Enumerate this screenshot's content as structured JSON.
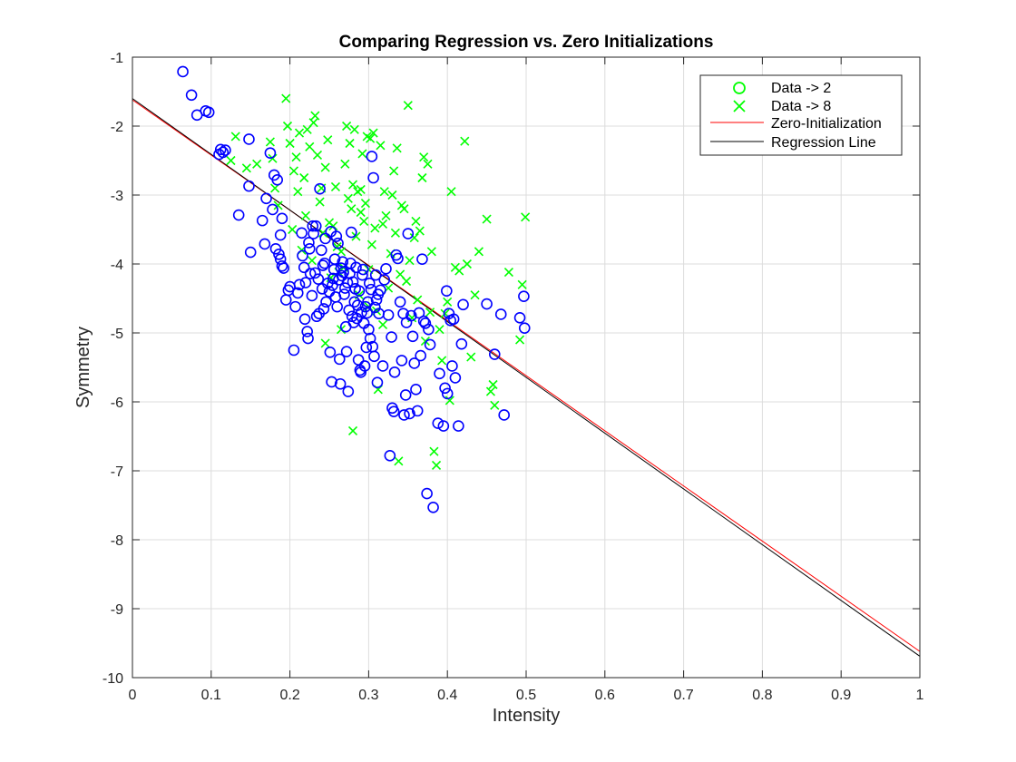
{
  "chart_data": {
    "type": "scatter",
    "title": "Comparing Regression vs. Zero Initializations",
    "xlabel": "Intensity",
    "ylabel": "Symmetry",
    "xlim": [
      0,
      1
    ],
    "ylim": [
      -10,
      -1
    ],
    "xticks": [
      "0",
      "0.1",
      "0.2",
      "0.3",
      "0.4",
      "0.5",
      "0.6",
      "0.7",
      "0.8",
      "0.9",
      "1"
    ],
    "yticks": [
      "-1",
      "-2",
      "-3",
      "-4",
      "-5",
      "-6",
      "-7",
      "-8",
      "-9",
      "-10"
    ],
    "grid": true,
    "legend_position": "top-right",
    "colors": {
      "data2": "#0000ff",
      "data8": "#00ff00",
      "zero_init": "#ff0000",
      "regression": "#000000",
      "grid": "#dcdcdc",
      "axis": "#262626"
    },
    "series": [
      {
        "name": "Data -> 2",
        "marker": "circle",
        "points": [
          [
            0.064,
            -1.21
          ],
          [
            0.075,
            -1.55
          ],
          [
            0.082,
            -1.84
          ],
          [
            0.093,
            -1.78
          ],
          [
            0.097,
            -1.8
          ],
          [
            0.11,
            -2.41
          ],
          [
            0.112,
            -2.34
          ],
          [
            0.118,
            -2.35
          ],
          [
            0.115,
            -2.38
          ],
          [
            0.135,
            -3.29
          ],
          [
            0.148,
            -2.87
          ],
          [
            0.15,
            -3.83
          ],
          [
            0.148,
            -2.19
          ],
          [
            0.165,
            -3.37
          ],
          [
            0.168,
            -3.71
          ],
          [
            0.17,
            -3.05
          ],
          [
            0.175,
            -2.39
          ],
          [
            0.178,
            -3.21
          ],
          [
            0.18,
            -2.71
          ],
          [
            0.182,
            -3.78
          ],
          [
            0.184,
            -2.78
          ],
          [
            0.186,
            -3.86
          ],
          [
            0.188,
            -3.93
          ],
          [
            0.19,
            -3.34
          ],
          [
            0.188,
            -3.58
          ],
          [
            0.192,
            -4.06
          ],
          [
            0.19,
            -4.03
          ],
          [
            0.195,
            -4.52
          ],
          [
            0.198,
            -4.38
          ],
          [
            0.2,
            -4.33
          ],
          [
            0.205,
            -5.25
          ],
          [
            0.207,
            -4.62
          ],
          [
            0.21,
            -4.42
          ],
          [
            0.212,
            -4.3
          ],
          [
            0.215,
            -3.55
          ],
          [
            0.216,
            -3.88
          ],
          [
            0.218,
            -4.05
          ],
          [
            0.219,
            -4.8
          ],
          [
            0.22,
            -4.27
          ],
          [
            0.222,
            -4.98
          ],
          [
            0.223,
            -5.08
          ],
          [
            0.224,
            -3.69
          ],
          [
            0.225,
            -3.78
          ],
          [
            0.226,
            -4.14
          ],
          [
            0.228,
            -4.46
          ],
          [
            0.229,
            -3.45
          ],
          [
            0.23,
            -3.56
          ],
          [
            0.232,
            -4.13
          ],
          [
            0.233,
            -3.45
          ],
          [
            0.234,
            -4.76
          ],
          [
            0.236,
            -4.22
          ],
          [
            0.237,
            -4.72
          ],
          [
            0.238,
            -2.91
          ],
          [
            0.24,
            -3.8
          ],
          [
            0.241,
            -4.36
          ],
          [
            0.242,
            -4.02
          ],
          [
            0.243,
            -4.65
          ],
          [
            0.244,
            -3.99
          ],
          [
            0.245,
            -3.63
          ],
          [
            0.246,
            -4.55
          ],
          [
            0.248,
            -4.28
          ],
          [
            0.25,
            -4.4
          ],
          [
            0.251,
            -5.28
          ],
          [
            0.252,
            -3.53
          ],
          [
            0.253,
            -5.71
          ],
          [
            0.254,
            -4.31
          ],
          [
            0.255,
            -4.21
          ],
          [
            0.256,
            -4.08
          ],
          [
            0.257,
            -3.93
          ],
          [
            0.258,
            -4.48
          ],
          [
            0.259,
            -3.6
          ],
          [
            0.26,
            -4.62
          ],
          [
            0.261,
            -3.7
          ],
          [
            0.262,
            -4.23
          ],
          [
            0.263,
            -5.38
          ],
          [
            0.264,
            -5.74
          ],
          [
            0.265,
            -4.06
          ],
          [
            0.266,
            -4.17
          ],
          [
            0.267,
            -3.97
          ],
          [
            0.268,
            -4.12
          ],
          [
            0.269,
            -4.44
          ],
          [
            0.27,
            -4.35
          ],
          [
            0.271,
            -4.91
          ],
          [
            0.272,
            -5.27
          ],
          [
            0.273,
            -4.27
          ],
          [
            0.274,
            -5.85
          ],
          [
            0.275,
            -4.67
          ],
          [
            0.276,
            -4.14
          ],
          [
            0.277,
            -3.99
          ],
          [
            0.278,
            -3.54
          ],
          [
            0.279,
            -4.76
          ],
          [
            0.28,
            -4.26
          ],
          [
            0.281,
            -4.85
          ],
          [
            0.282,
            -4.55
          ],
          [
            0.283,
            -4.36
          ],
          [
            0.284,
            -4.05
          ],
          [
            0.285,
            -4.79
          ],
          [
            0.286,
            -4.6
          ],
          [
            0.287,
            -5.39
          ],
          [
            0.288,
            -4.39
          ],
          [
            0.289,
            -5.54
          ],
          [
            0.29,
            -5.57
          ],
          [
            0.291,
            -4.7
          ],
          [
            0.292,
            -4.16
          ],
          [
            0.293,
            -4.08
          ],
          [
            0.294,
            -4.86
          ],
          [
            0.295,
            -5.48
          ],
          [
            0.296,
            -4.62
          ],
          [
            0.297,
            -5.21
          ],
          [
            0.298,
            -4.71
          ],
          [
            0.299,
            -4.55
          ],
          [
            0.3,
            -4.95
          ],
          [
            0.301,
            -4.28
          ],
          [
            0.302,
            -5.08
          ],
          [
            0.303,
            -4.37
          ],
          [
            0.304,
            -2.44
          ],
          [
            0.305,
            -5.2
          ],
          [
            0.306,
            -2.75
          ],
          [
            0.307,
            -5.34
          ],
          [
            0.308,
            -4.63
          ],
          [
            0.309,
            -4.16
          ],
          [
            0.31,
            -4.52
          ],
          [
            0.311,
            -5.72
          ],
          [
            0.312,
            -4.44
          ],
          [
            0.313,
            -4.72
          ],
          [
            0.315,
            -4.38
          ],
          [
            0.318,
            -5.48
          ],
          [
            0.32,
            -4.23
          ],
          [
            0.322,
            -4.07
          ],
          [
            0.325,
            -4.74
          ],
          [
            0.327,
            -6.78
          ],
          [
            0.329,
            -5.06
          ],
          [
            0.33,
            -6.09
          ],
          [
            0.332,
            -6.14
          ],
          [
            0.333,
            -5.57
          ],
          [
            0.335,
            -3.87
          ],
          [
            0.337,
            -3.92
          ],
          [
            0.34,
            -4.55
          ],
          [
            0.342,
            -5.4
          ],
          [
            0.344,
            -4.72
          ],
          [
            0.345,
            -6.19
          ],
          [
            0.347,
            -5.9
          ],
          [
            0.348,
            -4.85
          ],
          [
            0.35,
            -3.56
          ],
          [
            0.352,
            -6.17
          ],
          [
            0.354,
            -4.75
          ],
          [
            0.356,
            -5.05
          ],
          [
            0.358,
            -5.44
          ],
          [
            0.36,
            -5.82
          ],
          [
            0.362,
            -6.13
          ],
          [
            0.364,
            -4.71
          ],
          [
            0.366,
            -5.33
          ],
          [
            0.368,
            -3.93
          ],
          [
            0.37,
            -4.83
          ],
          [
            0.372,
            -4.86
          ],
          [
            0.374,
            -7.33
          ],
          [
            0.376,
            -4.95
          ],
          [
            0.378,
            -5.17
          ],
          [
            0.382,
            -7.53
          ],
          [
            0.388,
            -6.31
          ],
          [
            0.39,
            -5.59
          ],
          [
            0.395,
            -6.35
          ],
          [
            0.397,
            -5.8
          ],
          [
            0.399,
            -4.39
          ],
          [
            0.4,
            -5.88
          ],
          [
            0.402,
            -4.72
          ],
          [
            0.404,
            -4.82
          ],
          [
            0.406,
            -5.48
          ],
          [
            0.408,
            -4.8
          ],
          [
            0.41,
            -5.65
          ],
          [
            0.414,
            -6.35
          ],
          [
            0.418,
            -5.16
          ],
          [
            0.42,
            -4.59
          ],
          [
            0.45,
            -4.58
          ],
          [
            0.46,
            -5.31
          ],
          [
            0.468,
            -4.73
          ],
          [
            0.472,
            -6.19
          ],
          [
            0.492,
            -4.78
          ],
          [
            0.497,
            -4.47
          ],
          [
            0.498,
            -4.93
          ]
        ]
      },
      {
        "name": "Data -> 8",
        "marker": "cross",
        "points": [
          [
            0.125,
            -2.5
          ],
          [
            0.131,
            -2.15
          ],
          [
            0.145,
            -2.61
          ],
          [
            0.158,
            -2.55
          ],
          [
            0.175,
            -2.23
          ],
          [
            0.178,
            -2.47
          ],
          [
            0.181,
            -2.9
          ],
          [
            0.185,
            -3.15
          ],
          [
            0.195,
            -1.6
          ],
          [
            0.197,
            -2.0
          ],
          [
            0.2,
            -2.25
          ],
          [
            0.203,
            -3.5
          ],
          [
            0.205,
            -2.65
          ],
          [
            0.208,
            -2.45
          ],
          [
            0.21,
            -2.95
          ],
          [
            0.212,
            -2.1
          ],
          [
            0.215,
            -3.8
          ],
          [
            0.218,
            -2.75
          ],
          [
            0.22,
            -3.3
          ],
          [
            0.222,
            -2.05
          ],
          [
            0.225,
            -2.3
          ],
          [
            0.228,
            -3.95
          ],
          [
            0.23,
            -1.95
          ],
          [
            0.232,
            -1.85
          ],
          [
            0.235,
            -2.42
          ],
          [
            0.238,
            -3.1
          ],
          [
            0.24,
            -2.9
          ],
          [
            0.242,
            -3.55
          ],
          [
            0.245,
            -2.6
          ],
          [
            0.248,
            -2.2
          ],
          [
            0.25,
            -3.4
          ],
          [
            0.252,
            -4.2
          ],
          [
            0.255,
            -3.45
          ],
          [
            0.258,
            -2.88
          ],
          [
            0.26,
            -3.75
          ],
          [
            0.262,
            -4.12
          ],
          [
            0.265,
            -3.82
          ],
          [
            0.268,
            -4.05
          ],
          [
            0.27,
            -2.55
          ],
          [
            0.272,
            -2.0
          ],
          [
            0.274,
            -3.05
          ],
          [
            0.276,
            -2.25
          ],
          [
            0.278,
            -3.2
          ],
          [
            0.28,
            -2.85
          ],
          [
            0.282,
            -2.05
          ],
          [
            0.284,
            -3.6
          ],
          [
            0.286,
            -2.95
          ],
          [
            0.288,
            -4.45
          ],
          [
            0.29,
            -3.25
          ],
          [
            0.292,
            -2.4
          ],
          [
            0.294,
            -3.38
          ],
          [
            0.296,
            -3.12
          ],
          [
            0.298,
            -2.15
          ],
          [
            0.3,
            -4.08
          ],
          [
            0.302,
            -2.18
          ],
          [
            0.304,
            -3.72
          ],
          [
            0.306,
            -2.1
          ],
          [
            0.308,
            -3.48
          ],
          [
            0.31,
            -4.68
          ],
          [
            0.312,
            -5.82
          ],
          [
            0.315,
            -2.28
          ],
          [
            0.318,
            -3.42
          ],
          [
            0.32,
            -2.95
          ],
          [
            0.322,
            -3.3
          ],
          [
            0.325,
            -4.35
          ],
          [
            0.328,
            -3.85
          ],
          [
            0.33,
            -3.0
          ],
          [
            0.332,
            -2.65
          ],
          [
            0.334,
            -3.55
          ],
          [
            0.336,
            -2.32
          ],
          [
            0.338,
            -6.86
          ],
          [
            0.34,
            -4.15
          ],
          [
            0.342,
            -3.15
          ],
          [
            0.345,
            -3.2
          ],
          [
            0.348,
            -4.25
          ],
          [
            0.35,
            -1.7
          ],
          [
            0.352,
            -3.95
          ],
          [
            0.355,
            -4.78
          ],
          [
            0.358,
            -3.62
          ],
          [
            0.36,
            -3.38
          ],
          [
            0.362,
            -4.52
          ],
          [
            0.365,
            -3.52
          ],
          [
            0.368,
            -2.75
          ],
          [
            0.37,
            -2.45
          ],
          [
            0.372,
            -5.12
          ],
          [
            0.375,
            -2.55
          ],
          [
            0.378,
            -4.7
          ],
          [
            0.38,
            -3.82
          ],
          [
            0.383,
            -6.72
          ],
          [
            0.386,
            -6.92
          ],
          [
            0.39,
            -4.95
          ],
          [
            0.393,
            -5.4
          ],
          [
            0.397,
            -4.72
          ],
          [
            0.4,
            -4.55
          ],
          [
            0.403,
            -5.98
          ],
          [
            0.405,
            -2.95
          ],
          [
            0.41,
            -4.05
          ],
          [
            0.415,
            -4.1
          ],
          [
            0.422,
            -2.22
          ],
          [
            0.425,
            -4.0
          ],
          [
            0.43,
            -5.35
          ],
          [
            0.435,
            -4.45
          ],
          [
            0.44,
            -3.82
          ],
          [
            0.45,
            -3.35
          ],
          [
            0.455,
            -5.85
          ],
          [
            0.458,
            -5.75
          ],
          [
            0.46,
            -6.05
          ],
          [
            0.478,
            -4.12
          ],
          [
            0.492,
            -5.1
          ],
          [
            0.495,
            -4.3
          ],
          [
            0.499,
            -3.32
          ],
          [
            0.28,
            -6.42
          ],
          [
            0.245,
            -5.15
          ],
          [
            0.318,
            -4.88
          ],
          [
            0.265,
            -4.95
          ],
          [
            0.3,
            -4.62
          ],
          [
            0.29,
            -2.92
          ]
        ]
      },
      {
        "name": "Zero-Initialization",
        "type": "line",
        "x": [
          0,
          1
        ],
        "y": [
          -1.62,
          -9.62
        ]
      },
      {
        "name": "Regression Line",
        "type": "line",
        "x": [
          0,
          1
        ],
        "y": [
          -1.6,
          -9.69
        ]
      }
    ]
  }
}
